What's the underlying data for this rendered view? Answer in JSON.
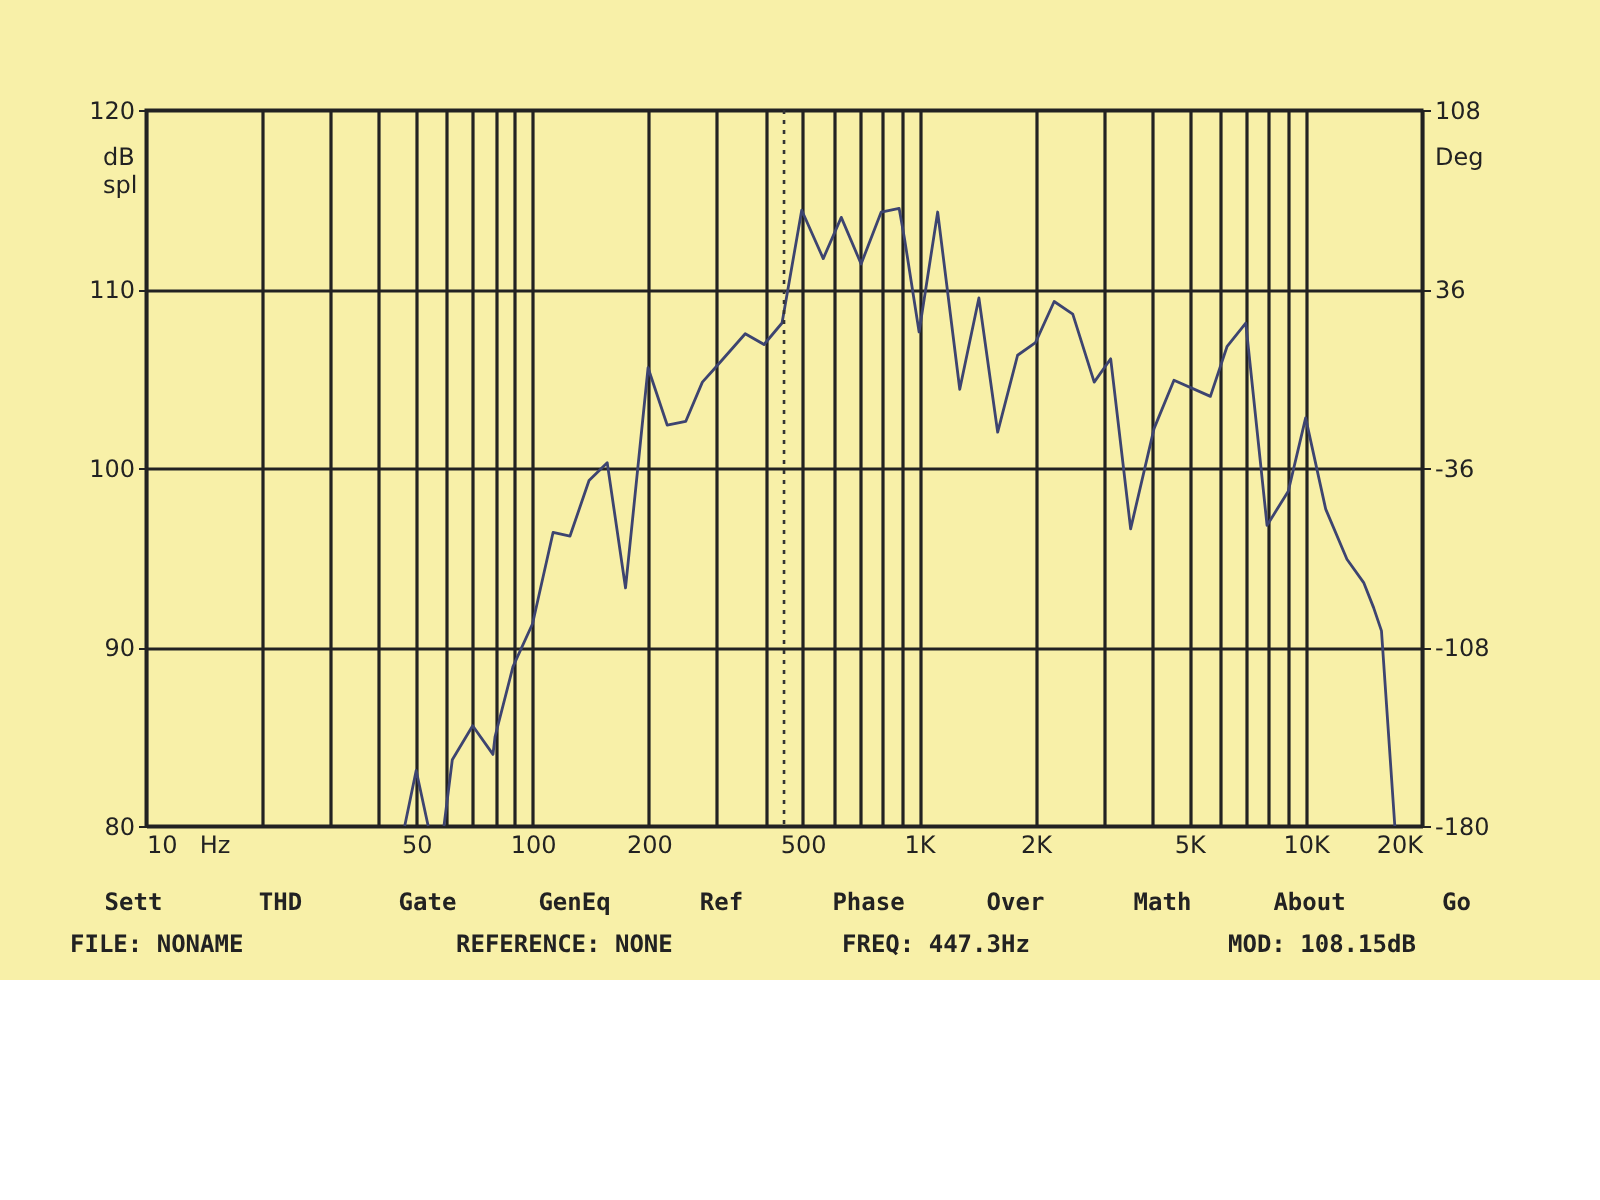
{
  "chart_data": {
    "type": "line",
    "xlabel": "Hz",
    "ylabel": "dB spl",
    "y2label": "Deg",
    "x": [
      46.7,
      50,
      53.7,
      56,
      59,
      62,
      70,
      79,
      80,
      89,
      100,
      113,
      125,
      140,
      156,
      174,
      199,
      223,
      249,
      275,
      297,
      355,
      397,
      442,
      497,
      565,
      629,
      708,
      798,
      888,
      917,
      1000,
      1117,
      1274,
      1428,
      1597,
      1798,
      2000,
      2236,
      2498,
      2838,
      3131,
      3526,
      4053,
      4564,
      5670,
      6265,
      7000,
      7946,
      9018,
      10000,
      11270,
      12790,
      14130,
      14990,
      15710,
      17010
    ],
    "series": [
      {
        "color": "#3d4470",
        "values": [
          80,
          83.1,
          80,
          null,
          80,
          83.7,
          85.6,
          84.0,
          85.0,
          88.9,
          91.3,
          96.4,
          96.2,
          99.3,
          100.3,
          93.3,
          105.6,
          102.4,
          102.6,
          104.8,
          105.6,
          107.5,
          106.9,
          108.1,
          114.4,
          111.7,
          114.0,
          111.4,
          114.3,
          114.5,
          112.8,
          107.6,
          114.3,
          104.4,
          109.5,
          102.0,
          106.3,
          107.0,
          109.3,
          108.6,
          104.8,
          106.1,
          96.6,
          102.2,
          104.9,
          104.0,
          106.8,
          108.1,
          96.8,
          98.7,
          102.8,
          97.7,
          94.9,
          93.6,
          92.2,
          90.9,
          80
        ]
      }
    ],
    "xlim": [
      10,
      20000
    ],
    "ylim": [
      80,
      120
    ],
    "y2lim": [
      -180,
      108
    ],
    "xticks": [
      10,
      {
        "value": 20,
        "label": null
      },
      {
        "value": 30,
        "label": null
      },
      {
        "value": 40,
        "label": null
      },
      50,
      {
        "value": 60,
        "label": null
      },
      {
        "value": 70,
        "label": null
      },
      {
        "value": 80,
        "label": null
      },
      {
        "value": 90,
        "label": null
      },
      100,
      200,
      {
        "value": 300,
        "label": null
      },
      {
        "value": 400,
        "label": null
      },
      500,
      {
        "value": 600,
        "label": null
      },
      {
        "value": 700,
        "label": null
      },
      {
        "value": 800,
        "label": null
      },
      {
        "value": 900,
        "label": null
      },
      {
        "value": 1000,
        "label": "1K"
      },
      {
        "value": 2000,
        "label": "2K"
      },
      {
        "value": 3000,
        "label": null
      },
      {
        "value": 4000,
        "label": null
      },
      {
        "value": 5000,
        "label": "5K"
      },
      {
        "value": 6000,
        "label": null
      },
      {
        "value": 7000,
        "label": null
      },
      {
        "value": 8000,
        "label": null
      },
      {
        "value": 9000,
        "label": null
      },
      {
        "value": 10000,
        "label": "10K"
      },
      {
        "value": 20000,
        "label": "20K"
      }
    ],
    "yticks": [
      80,
      90,
      100,
      110,
      120
    ],
    "y2ticks": [
      108,
      36,
      -36,
      -108,
      -180
    ],
    "log": "x",
    "grid": true,
    "marker": "none",
    "line_style": "solid",
    "ref_lines": [
      {
        "axis": "x",
        "value": 447.3,
        "line_style": "dotted",
        "color": "#333333"
      }
    ],
    "annotations": [
      "Sett",
      "THD",
      "Gate",
      "GenEq",
      "Ref",
      "Phase",
      "Over",
      "Math",
      "About",
      "Go",
      "FILE: NONAME",
      "REFERENCE: NONE",
      "FREQ: 447.3Hz",
      "MOD: 108.15dB"
    ]
  }
}
